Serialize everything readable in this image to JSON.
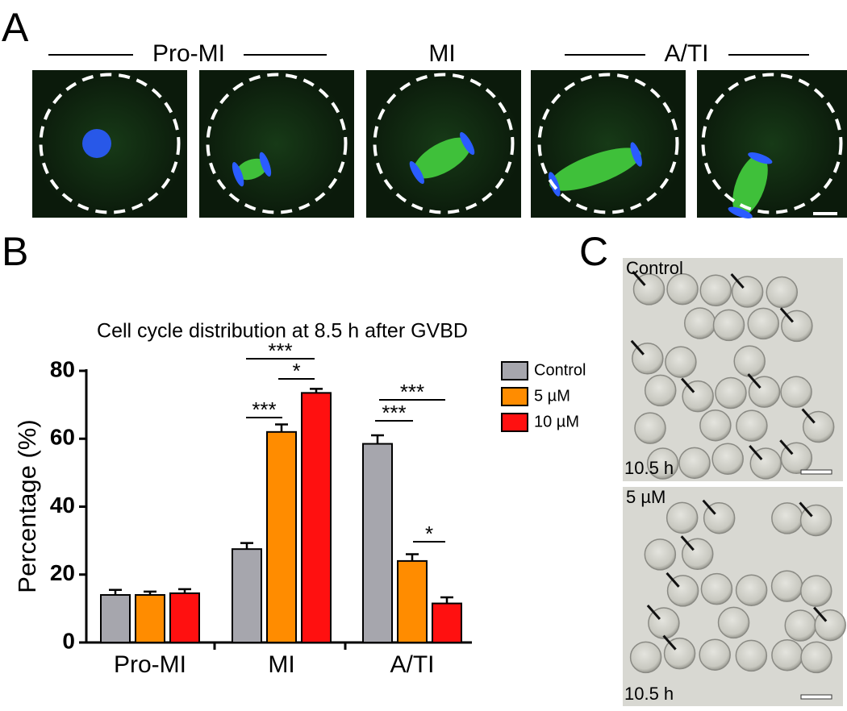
{
  "panel_labels": [
    "A",
    "B",
    "C"
  ],
  "panel_a": {
    "groups": [
      "Pro-MI",
      "MI",
      "A/TI"
    ]
  },
  "chart_data": {
    "type": "bar",
    "title": "Cell cycle distribution at 8.5 h after GVBD",
    "y_label": "Percentage (%)",
    "categories": [
      "Pro-MI",
      "MI",
      "A/TI"
    ],
    "series": [
      {
        "name": "Control",
        "color": "#a6a6ad",
        "values": [
          14,
          27.5,
          58.5
        ],
        "errors": [
          1.5,
          1.8,
          2.5
        ]
      },
      {
        "name": "5 µM",
        "color": "#ff8c00",
        "values": [
          14,
          62,
          24
        ],
        "errors": [
          1,
          2.2,
          2
        ]
      },
      {
        "name": "10 µM",
        "color": "#ff1010",
        "values": [
          14.5,
          73.5,
          11.5
        ],
        "errors": [
          1.2,
          1.2,
          1.8
        ]
      }
    ],
    "ylim": [
      0,
      80
    ],
    "yticks": [
      0,
      20,
      40,
      60,
      80
    ],
    "grid": false,
    "annotations": [
      {
        "text": "***"
      },
      {
        "text": "*"
      },
      {
        "text": "***"
      },
      {
        "text": "***"
      },
      {
        "text": "***"
      },
      {
        "text": "*"
      }
    ]
  },
  "panel_c": {
    "images": [
      {
        "condition": "Control",
        "time": "10.5 h"
      },
      {
        "condition": "5 µM",
        "time": "10.5 h"
      }
    ]
  }
}
